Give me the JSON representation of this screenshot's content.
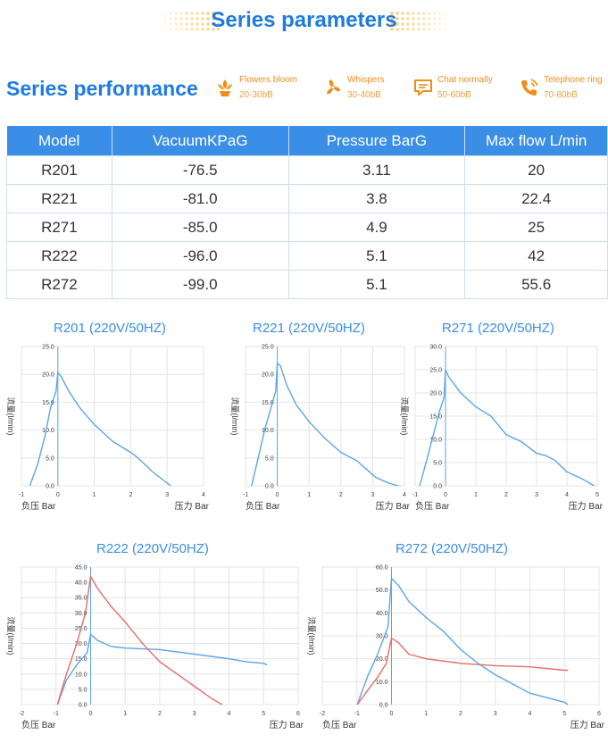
{
  "header": {
    "title": "Series parameters"
  },
  "performance": {
    "title": "Series performance",
    "levels": [
      {
        "icon": "flower-icon",
        "name": "Flowers bloom",
        "db": "20-30bB"
      },
      {
        "icon": "fan-icon",
        "name": "Whispers",
        "db": "30-40bB"
      },
      {
        "icon": "chat-icon",
        "name": "Chat normally",
        "db": "50-60bB"
      },
      {
        "icon": "phone-icon",
        "name": "Telephone ring",
        "db": "70-80bB"
      }
    ],
    "colors": {
      "accent": "#1e7be0",
      "table_header": "#3a8ee6",
      "noise_text": "#f08c1a",
      "curve_blue": "#5aa6e6",
      "curve_red": "#e86a6a"
    }
  },
  "table": {
    "headers": [
      "Model",
      "VacuumKPaG",
      "Pressure BarG",
      "Max flow L/min"
    ],
    "rows": [
      [
        "R201",
        "-76.5",
        "3.11",
        "20"
      ],
      [
        "R221",
        "-81.0",
        "3.8",
        "22.4"
      ],
      [
        "R271",
        "-85.0",
        "4.9",
        "25"
      ],
      [
        "R222",
        "-96.0",
        "5.1",
        "42"
      ],
      [
        "R272",
        "-99.0",
        "5.1",
        "55.6"
      ]
    ]
  },
  "chart_data": [
    {
      "type": "line",
      "title": "R201 (220V/50HZ)",
      "ylabel": "流量(l/min)",
      "xlabel_left": "负压 Bar",
      "xlabel_right": "压力 Bar",
      "xlim": [
        -1,
        4
      ],
      "ylim": [
        0,
        25
      ],
      "xticks": [
        "-1",
        "0",
        "1",
        "2",
        "3",
        "4"
      ],
      "yticks": [
        "0.0",
        "5.0",
        "10.0",
        "15.0",
        "20.0",
        "25.0"
      ],
      "series": [
        {
          "color": "blue",
          "x": [
            -0.77,
            -0.55,
            -0.35,
            -0.2,
            -0.05,
            0,
            0.1,
            0.3,
            0.6,
            1,
            1.5,
            2,
            2.2,
            2.6,
            3.1
          ],
          "y": [
            0,
            4,
            9,
            14,
            17,
            20.3,
            19.5,
            17,
            14,
            11,
            8,
            6,
            5,
            2.5,
            0
          ]
        }
      ]
    },
    {
      "type": "line",
      "title": "R221 (220V/50HZ)",
      "ylabel": "流量(l/min)",
      "xlabel_left": "负压 Bar",
      "xlabel_right": "压力 Bar",
      "xlim": [
        -1,
        4
      ],
      "ylim": [
        0,
        25
      ],
      "xticks": [
        "-1",
        "0",
        "1",
        "2",
        "3",
        "4"
      ],
      "yticks": [
        "0.0",
        "5.0",
        "10.0",
        "15.0",
        "20.0",
        "25.0"
      ],
      "series": [
        {
          "color": "blue",
          "x": [
            -0.81,
            -0.6,
            -0.4,
            -0.2,
            -0.05,
            0,
            0.1,
            0.3,
            0.6,
            1,
            1.5,
            2,
            2.5,
            2.8,
            3.1,
            3.3,
            3.5,
            3.8
          ],
          "y": [
            0,
            5,
            10,
            14,
            17,
            22,
            21.5,
            18,
            14.5,
            11.5,
            8.5,
            6,
            4.5,
            3,
            1.5,
            1,
            0.5,
            0
          ]
        }
      ]
    },
    {
      "type": "line",
      "title": "R271 (220V/50HZ)",
      "ylabel": "流量(l/min)",
      "xlabel_left": "负压 Bar",
      "xlabel_right": "压力 Bar",
      "xlim": [
        -1,
        5
      ],
      "ylim": [
        0,
        30
      ],
      "xticks": [
        "-1",
        "0",
        "1",
        "2",
        "3",
        "4",
        "5"
      ],
      "yticks": [
        "0.0",
        "5.0",
        "10.0",
        "15.0",
        "20.0",
        "25.0",
        "30.0"
      ],
      "series": [
        {
          "color": "blue",
          "x": [
            -0.85,
            -0.6,
            -0.4,
            -0.2,
            -0.05,
            0,
            0.1,
            0.5,
            1,
            1.5,
            2,
            2.5,
            3,
            3.3,
            3.6,
            4,
            4.5,
            4.9
          ],
          "y": [
            0,
            6,
            11,
            16,
            19,
            25,
            23.5,
            20,
            17,
            15,
            11,
            9.5,
            7,
            6.5,
            5.5,
            3,
            1.5,
            0
          ]
        }
      ]
    },
    {
      "type": "line",
      "title": "R222 (220V/50HZ)",
      "ylabel": "流量(l/min)",
      "xlabel_left": "负压 Bar",
      "xlabel_right": "压力 Bar",
      "xlim": [
        -2,
        6
      ],
      "ylim": [
        0,
        45
      ],
      "xticks": [
        "-2",
        "-1",
        "0",
        "1",
        "2",
        "3",
        "4",
        "5",
        "6"
      ],
      "yticks": [
        "0.0",
        "5.0",
        "10.0",
        "15.0",
        "20.0",
        "25.0",
        "30.0",
        "35.0",
        "40.0",
        "45.0"
      ],
      "series": [
        {
          "color": "blue",
          "x": [
            -0.96,
            -0.7,
            -0.4,
            -0.1,
            0,
            0.2,
            0.6,
            1,
            2,
            3,
            4,
            4.5,
            5,
            5.1
          ],
          "y": [
            0,
            8,
            13,
            17,
            23,
            21,
            19,
            18.5,
            18,
            16.5,
            15,
            14,
            13.5,
            13
          ]
        },
        {
          "color": "red",
          "x": [
            -0.96,
            -0.7,
            -0.4,
            -0.15,
            0,
            0.2,
            0.6,
            1,
            1.5,
            2,
            2.5,
            3,
            3.5,
            3.8
          ],
          "y": [
            0,
            10,
            20,
            30,
            42,
            38,
            32,
            27,
            20,
            14,
            10,
            6,
            2,
            0
          ]
        }
      ]
    },
    {
      "type": "line",
      "title": "R272 (220V/50HZ)",
      "ylabel": "流量(l/min)",
      "xlabel_left": "负压 Bar",
      "xlabel_right": "压力 Bar",
      "xlim": [
        -2,
        6
      ],
      "ylim": [
        0,
        60
      ],
      "xticks": [
        "-2",
        "-1",
        "0",
        "1",
        "2",
        "3",
        "4",
        "5",
        "6"
      ],
      "yticks": [
        "0.0",
        "10.0",
        "20.0",
        "30.0",
        "40.0",
        "50.0",
        "60.0"
      ],
      "series": [
        {
          "color": "blue",
          "x": [
            -0.99,
            -0.7,
            -0.4,
            -0.1,
            0,
            0.2,
            0.5,
            1,
            1.5,
            2,
            2.5,
            3,
            3.5,
            4,
            4.5,
            5,
            5.1
          ],
          "y": [
            0,
            12,
            22,
            34,
            55,
            52,
            45,
            38,
            32,
            24,
            18,
            13,
            9,
            5,
            3,
            1,
            0
          ]
        },
        {
          "color": "red",
          "x": [
            -0.99,
            -0.7,
            -0.4,
            -0.15,
            0,
            0.2,
            0.5,
            1,
            2,
            3,
            4,
            5,
            5.1
          ],
          "y": [
            0,
            6,
            12,
            18,
            29,
            27,
            22,
            20,
            18,
            17,
            16.5,
            15,
            15
          ]
        }
      ]
    }
  ]
}
